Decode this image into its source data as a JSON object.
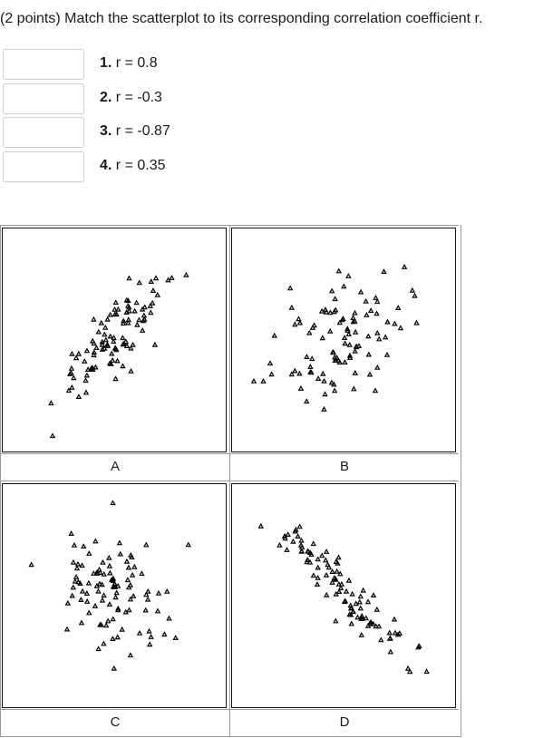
{
  "question": {
    "text": "(2 points) Match the scatterplot to its corresponding correlation coefficient r."
  },
  "matches": [
    {
      "number": "1.",
      "label": "r = 0.8",
      "value": ""
    },
    {
      "number": "2.",
      "label": "r = -0.3",
      "value": ""
    },
    {
      "number": "3.",
      "label": "r = -0.87",
      "value": ""
    },
    {
      "number": "4.",
      "label": "r = 0.35",
      "value": ""
    }
  ],
  "plots": [
    {
      "label": "A",
      "r": 0.8
    },
    {
      "label": "B",
      "r": 0.35
    },
    {
      "label": "C",
      "r": -0.3
    },
    {
      "label": "D",
      "r": -0.87
    }
  ]
}
